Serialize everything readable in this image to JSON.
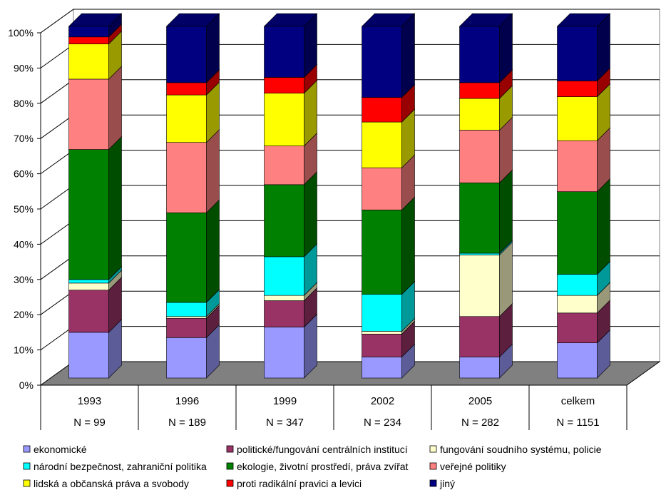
{
  "chart_data": {
    "type": "bar",
    "stacked": "percent",
    "title": "",
    "xlabel": "",
    "ylabel": "",
    "ylim": [
      0,
      100
    ],
    "y_ticks": [
      "0%",
      "10%",
      "20%",
      "30%",
      "40%",
      "50%",
      "60%",
      "70%",
      "80%",
      "90%",
      "100%"
    ],
    "legend_position": "bottom",
    "categories": [
      "1993",
      "1996",
      "1999",
      "2002",
      "2005",
      "celkem"
    ],
    "sample_sizes": [
      "N = 99",
      "N = 189",
      "N = 347",
      "N = 234",
      "N = 282",
      "N = 1151"
    ],
    "series": [
      {
        "name": "ekonomické",
        "color": "#9999ff",
        "values": [
          13,
          11.5,
          14.5,
          6,
          6,
          10
        ]
      },
      {
        "name": "politické/fungování centrálních institucí",
        "color": "#993366",
        "values": [
          12,
          5.5,
          7.5,
          6.5,
          11.5,
          8.5
        ]
      },
      {
        "name": "fungování soudního systému, policie",
        "color": "#ffffcc",
        "values": [
          2,
          0.5,
          1.5,
          0.8,
          17.5,
          5
        ]
      },
      {
        "name": "národní bezpečnost, zahraniční politika",
        "color": "#00ffff",
        "values": [
          1,
          4,
          11,
          10.5,
          0.5,
          6
        ]
      },
      {
        "name": "ekologie, životní prostředí, práva zvířat",
        "color": "#008000",
        "values": [
          37,
          25.5,
          20.5,
          24,
          20,
          23.5
        ]
      },
      {
        "name": "veřejné politiky",
        "color": "#ff8080",
        "values": [
          20,
          20,
          11,
          12,
          15,
          14.5
        ]
      },
      {
        "name": "lidská a občanská práva a svobody",
        "color": "#ffff00",
        "values": [
          10,
          13.5,
          15,
          13,
          9,
          12.5
        ]
      },
      {
        "name": "proti radikální pravici a levici",
        "color": "#ff0000",
        "values": [
          2,
          3.5,
          4.5,
          7,
          4.5,
          4.5
        ]
      },
      {
        "name": "jiný",
        "color": "#000080",
        "values": [
          3,
          16,
          14.5,
          20.2,
          16,
          15.5
        ]
      }
    ]
  }
}
